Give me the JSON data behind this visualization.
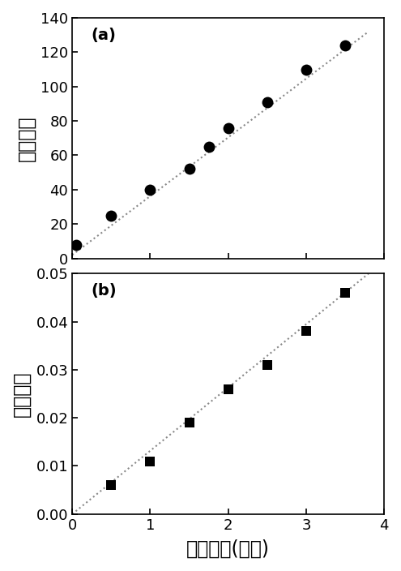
{
  "panel_a": {
    "label": "(a)",
    "x": [
      0.05,
      0.5,
      1.0,
      1.5,
      1.75,
      2.0,
      2.5,
      3.0,
      3.5
    ],
    "y": [
      8,
      25,
      40,
      52,
      65,
      76,
      91,
      110,
      124
    ],
    "fit_x": [
      0.0,
      3.8
    ],
    "fit_y": [
      2.0,
      132.0
    ],
    "ylabel": "荧光强度",
    "ylim": [
      0,
      140
    ],
    "yticks": [
      0,
      20,
      40,
      60,
      80,
      100,
      120,
      140
    ],
    "xlim": [
      0,
      4
    ],
    "xticks": [
      0,
      1,
      2,
      3,
      4
    ]
  },
  "panel_b": {
    "label": "(b)",
    "x": [
      0.5,
      1.0,
      1.5,
      2.0,
      2.5,
      3.0,
      3.5
    ],
    "y": [
      0.006,
      0.011,
      0.019,
      0.026,
      0.031,
      0.038,
      0.046
    ],
    "fit_x": [
      0.0,
      3.8
    ],
    "fit_y": [
      0.0,
      0.05
    ],
    "ylabel": "紫外吸收",
    "ylim": [
      0.0,
      0.05
    ],
    "yticks": [
      0.0,
      0.01,
      0.02,
      0.03,
      0.04,
      0.05
    ],
    "xlim": [
      0,
      4
    ],
    "xticks": [
      0,
      1,
      2,
      3,
      4
    ],
    "xlabel": "辐射时间(小时)"
  },
  "marker_color": "#000000",
  "line_color": "#888888",
  "background_color": "#ffffff",
  "fig_width": 4.95,
  "fig_height": 7.04,
  "dpi": 100
}
